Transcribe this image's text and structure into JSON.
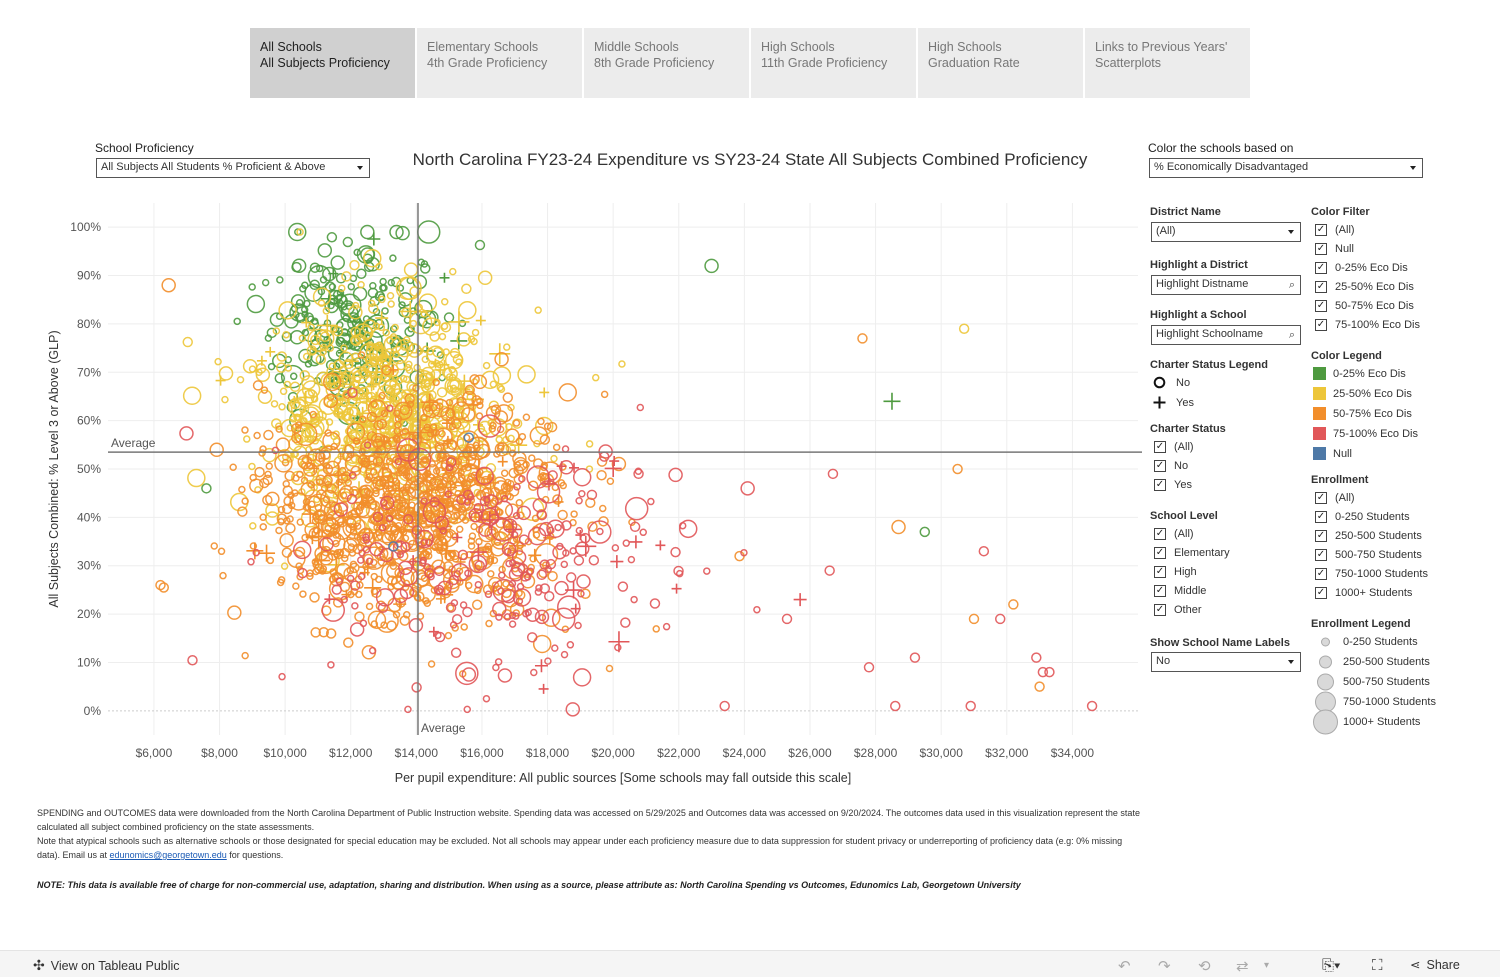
{
  "tabs": [
    {
      "line1": "All Schools",
      "line2": "All Subjects Proficiency",
      "active": true
    },
    {
      "line1": "Elementary Schools",
      "line2": "4th Grade Proficiency",
      "active": false
    },
    {
      "line1": "Middle Schools",
      "line2": "8th Grade Proficiency",
      "active": false
    },
    {
      "line1": "High Schools",
      "line2": "11th Grade Proficiency",
      "active": false
    },
    {
      "line1": "High Schools",
      "line2": "Graduation Rate",
      "active": false
    },
    {
      "line1": "Links to Previous Years'",
      "line2": "Scatterplots",
      "active": false
    }
  ],
  "controls": {
    "proficiency_label": "School Proficiency",
    "proficiency_value": "All Subjects All Students % Proficient & Above",
    "color_label": "Color the schools based on",
    "color_value": "% Economically Disadvantaged",
    "district_label": "District Name",
    "district_value": "(All)",
    "highlight_district_label": "Highlight a District",
    "highlight_district_placeholder": "Highlight Distname",
    "highlight_school_label": "Highlight a School",
    "highlight_school_placeholder": "Highlight Schoolname",
    "labels_label": "Show School Name Labels",
    "labels_value": "No"
  },
  "charter_legend": {
    "title": "Charter Status Legend",
    "items": [
      {
        "label": "No",
        "icon": "circle-icon"
      },
      {
        "label": "Yes",
        "icon": "plus-icon"
      }
    ]
  },
  "charter_status": {
    "title": "Charter Status",
    "items": [
      "(All)",
      "No",
      "Yes"
    ]
  },
  "school_level": {
    "title": "School Level",
    "items": [
      "(All)",
      "Elementary",
      "High",
      "Middle",
      "Other"
    ]
  },
  "color_filter": {
    "title": "Color Filter",
    "items": [
      "(All)",
      "Null",
      "0-25% Eco Dis",
      "25-50% Eco Dis",
      "50-75% Eco Dis",
      "75-100% Eco Dis"
    ]
  },
  "color_legend": {
    "title": "Color Legend",
    "items": [
      {
        "label": "0-25% Eco Dis",
        "color": "#4e9a3f"
      },
      {
        "label": "25-50% Eco Dis",
        "color": "#edc63a"
      },
      {
        "label": "50-75% Eco Dis",
        "color": "#f28e2b"
      },
      {
        "label": "75-100% Eco Dis",
        "color": "#e15759"
      },
      {
        "label": "Null",
        "color": "#4e79a7"
      }
    ]
  },
  "enrollment": {
    "title": "Enrollment",
    "items": [
      "(All)",
      "0-250 Students",
      "250-500 Students",
      "500-750 Students",
      "750-1000 Students",
      "1000+ Students"
    ]
  },
  "enrollment_legend": {
    "title": "Enrollment Legend",
    "items": [
      "0-250 Students",
      "250-500 Students",
      "500-750 Students",
      "750-1000 Students",
      "1000+ Students"
    ]
  },
  "chart_data": {
    "type": "scatter",
    "title": "North Carolina FY23-24 Expenditure vs SY23-24 State All Subjects Combined Proficiency",
    "xlabel": "Per pupil expenditure: All public sources [Some schools may fall outside this scale]",
    "ylabel": "All Subjects Combined: % Level 3 or Above (GLP)",
    "xlim": [
      4600,
      36000
    ],
    "ylim": [
      -5,
      105
    ],
    "xticks": [
      6000,
      8000,
      10000,
      12000,
      14000,
      16000,
      18000,
      20000,
      22000,
      24000,
      26000,
      28000,
      30000,
      32000,
      34000
    ],
    "xtick_labels": [
      "$6,000",
      "$8,000",
      "$10,000",
      "$12,000",
      "$14,000",
      "$16,000",
      "$18,000",
      "$20,000",
      "$22,000",
      "$24,000",
      "$26,000",
      "$28,000",
      "$30,000",
      "$32,000",
      "$34,000"
    ],
    "yticks": [
      0,
      10,
      20,
      30,
      40,
      50,
      60,
      70,
      80,
      90,
      100
    ],
    "ytick_labels": [
      "0%",
      "10%",
      "20%",
      "30%",
      "40%",
      "50%",
      "60%",
      "70%",
      "80%",
      "90%",
      "100%"
    ],
    "average": {
      "x": 14050,
      "y": 53.5,
      "x_label": "Average",
      "y_label": "Average"
    },
    "grid": true,
    "clusters": [
      {
        "category": "0-25% Eco Dis",
        "cx": 12000,
        "cy": 80,
        "sx": 1400,
        "sy": 8,
        "n": 230
      },
      {
        "category": "25-50% Eco Dis",
        "cx": 13000,
        "cy": 62,
        "sx": 1900,
        "sy": 12,
        "n": 700
      },
      {
        "category": "50-75% Eco Dis",
        "cx": 14000,
        "cy": 42,
        "sx": 2300,
        "sy": 11,
        "n": 950
      },
      {
        "category": "75-100% Eco Dis",
        "cx": 16800,
        "cy": 30,
        "sx": 2900,
        "sy": 13,
        "n": 260
      }
    ],
    "points": [
      {
        "x": 23000,
        "y": 92,
        "category": "0-25% Eco Dis",
        "charter": "No",
        "size": 2
      },
      {
        "x": 28500,
        "y": 64,
        "category": "0-25% Eco Dis",
        "charter": "Yes",
        "size": 2
      },
      {
        "x": 29500,
        "y": 37,
        "category": "0-25% Eco Dis",
        "charter": "No",
        "size": 1
      },
      {
        "x": 7600,
        "y": 46,
        "category": "0-25% Eco Dis",
        "charter": "No",
        "size": 1
      },
      {
        "x": 30700,
        "y": 79,
        "category": "25-50% Eco Dis",
        "charter": "No",
        "size": 1
      },
      {
        "x": 27600,
        "y": 77,
        "category": "50-75% Eco Dis",
        "charter": "No",
        "size": 1
      },
      {
        "x": 30500,
        "y": 50,
        "category": "50-75% Eco Dis",
        "charter": "No",
        "size": 1
      },
      {
        "x": 28700,
        "y": 38,
        "category": "50-75% Eco Dis",
        "charter": "No",
        "size": 2
      },
      {
        "x": 31000,
        "y": 19,
        "category": "50-75% Eco Dis",
        "charter": "No",
        "size": 1
      },
      {
        "x": 32200,
        "y": 22,
        "category": "50-75% Eco Dis",
        "charter": "No",
        "size": 1
      },
      {
        "x": 33000,
        "y": 5,
        "category": "50-75% Eco Dis",
        "charter": "No",
        "size": 1
      },
      {
        "x": 6200,
        "y": 26,
        "category": "50-75% Eco Dis",
        "charter": "No",
        "size": 1
      },
      {
        "x": 6300,
        "y": 25.5,
        "category": "50-75% Eco Dis",
        "charter": "No",
        "size": 1
      },
      {
        "x": 6450,
        "y": 88,
        "category": "50-75% Eco Dis",
        "charter": "No",
        "size": 2
      },
      {
        "x": 31300,
        "y": 33,
        "category": "75-100% Eco Dis",
        "charter": "No",
        "size": 1
      },
      {
        "x": 31800,
        "y": 19,
        "category": "75-100% Eco Dis",
        "charter": "No",
        "size": 1
      },
      {
        "x": 32900,
        "y": 11,
        "category": "75-100% Eco Dis",
        "charter": "No",
        "size": 1
      },
      {
        "x": 33300,
        "y": 8,
        "category": "75-100% Eco Dis",
        "charter": "No",
        "size": 1
      },
      {
        "x": 33100,
        "y": 8,
        "category": "75-100% Eco Dis",
        "charter": "No",
        "size": 1
      },
      {
        "x": 34600,
        "y": 1,
        "category": "75-100% Eco Dis",
        "charter": "No",
        "size": 1
      },
      {
        "x": 30900,
        "y": 1,
        "category": "75-100% Eco Dis",
        "charter": "No",
        "size": 1
      },
      {
        "x": 28600,
        "y": 1,
        "category": "75-100% Eco Dis",
        "charter": "No",
        "size": 1
      },
      {
        "x": 25300,
        "y": 19,
        "category": "75-100% Eco Dis",
        "charter": "No",
        "size": 1
      },
      {
        "x": 26600,
        "y": 29,
        "category": "75-100% Eco Dis",
        "charter": "No",
        "size": 1
      },
      {
        "x": 27800,
        "y": 9,
        "category": "75-100% Eco Dis",
        "charter": "No",
        "size": 1
      },
      {
        "x": 29200,
        "y": 11,
        "category": "75-100% Eco Dis",
        "charter": "No",
        "size": 1
      },
      {
        "x": 26700,
        "y": 49,
        "category": "75-100% Eco Dis",
        "charter": "No",
        "size": 1
      },
      {
        "x": 24100,
        "y": 46,
        "category": "75-100% Eco Dis",
        "charter": "No",
        "size": 2
      },
      {
        "x": 23400,
        "y": 1,
        "category": "75-100% Eco Dis",
        "charter": "No",
        "size": 1
      },
      {
        "x": 25700,
        "y": 23,
        "category": "75-100% Eco Dis",
        "charter": "Yes",
        "size": 1
      },
      {
        "x": 15600,
        "y": 56.5,
        "category": "Null",
        "charter": "No",
        "size": 1
      },
      {
        "x": 13300,
        "y": 34,
        "category": "Null",
        "charter": "No",
        "size": 1
      }
    ]
  },
  "footer": {
    "line1": "SPENDING and OUTCOMES data were downloaded from the North Carolina Department of Public Instruction website. Spending data was accessed on 5/29/2025 and Outcomes data was accessed on 9/20/2024. The outcomes data used in this visualization represent the state calculated all subject combined proficiency on the state assessments.",
    "line2_pre": "Note that atypical schools such as alternative schools or those designated for special education may be excluded. Not all schools may appear under each proficiency measure due to data suppression for student privacy or underreporting of proficiency data (e.g: 0% missing data). Email us at ",
    "email": "edunomics@georgetown.edu",
    "line2_post": " for questions.",
    "note": "NOTE: This data is available free of charge for non-commercial use, adaptation, sharing and distribution. When using as a source, please attribute as: North Carolina Spending vs Outcomes, Edunomics Lab, Georgetown University"
  },
  "toolbar": {
    "view_label": "View on Tableau Public",
    "share_label": "Share"
  }
}
